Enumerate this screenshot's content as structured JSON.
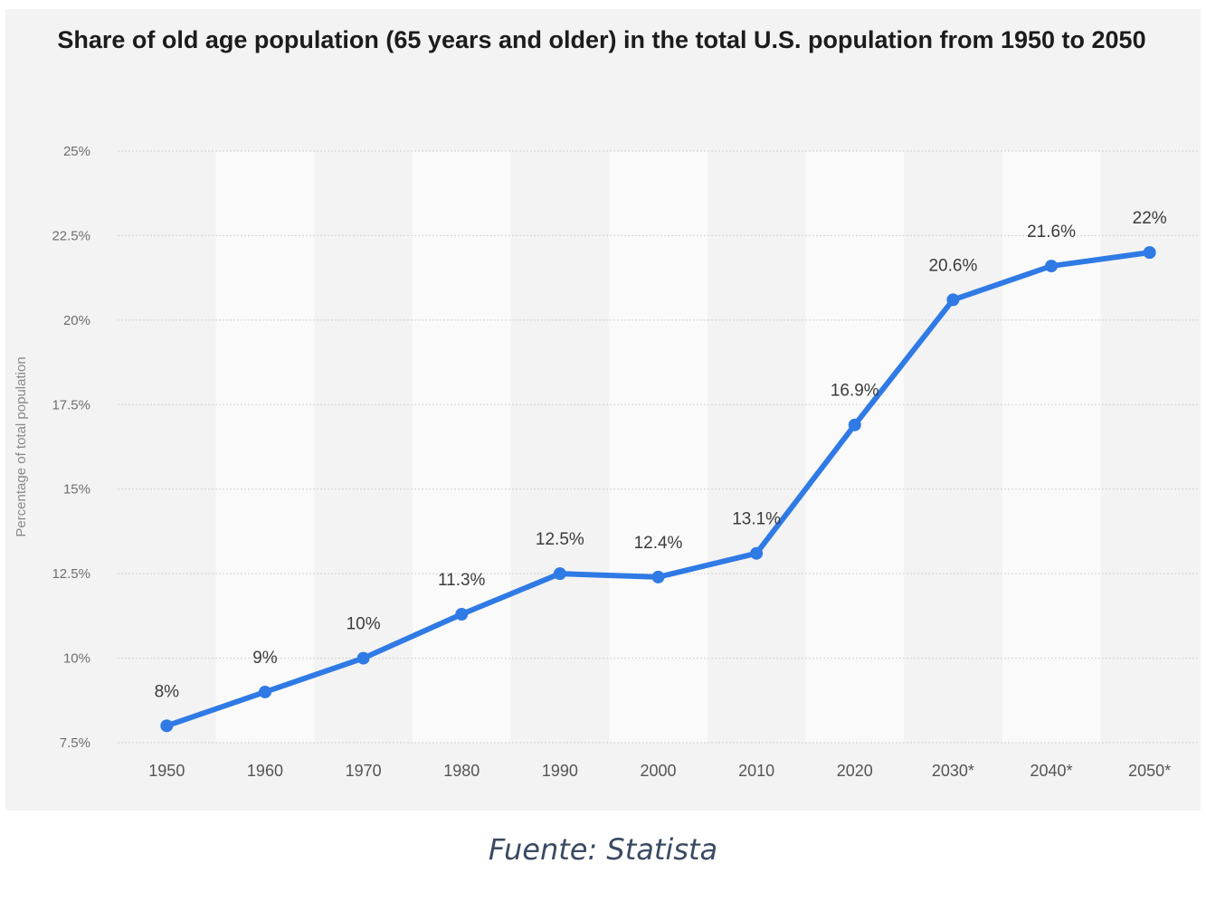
{
  "chart_data": {
    "type": "line",
    "title": "Share of old age population (65 years and older) in the total U.S. population from 1950 to 2050",
    "xlabel": "",
    "ylabel": "Percentage of total population",
    "categories": [
      "1950",
      "1960",
      "1970",
      "1980",
      "1990",
      "2000",
      "2010",
      "2020",
      "2030*",
      "2040*",
      "2050*"
    ],
    "series": [
      {
        "name": "",
        "values": [
          8,
          9,
          10,
          11.3,
          12.5,
          12.4,
          13.1,
          16.9,
          20.6,
          21.6,
          22
        ],
        "labels": [
          "8%",
          "9%",
          "10%",
          "11.3%",
          "12.5%",
          "12.4%",
          "13.1%",
          "16.9%",
          "20.6%",
          "21.6%",
          "22%"
        ]
      }
    ],
    "yticks": [
      7.5,
      10,
      12.5,
      15,
      17.5,
      20,
      22.5,
      25
    ],
    "ytick_labels": [
      "7.5%",
      "10%",
      "12.5%",
      "15%",
      "17.5%",
      "20%",
      "22.5%",
      "25%"
    ],
    "ylim": [
      7.5,
      25
    ],
    "grid": true,
    "line_color": "#2f7ae5",
    "background_color": "#f3f3f3"
  },
  "source_caption": "Fuente: Statista"
}
